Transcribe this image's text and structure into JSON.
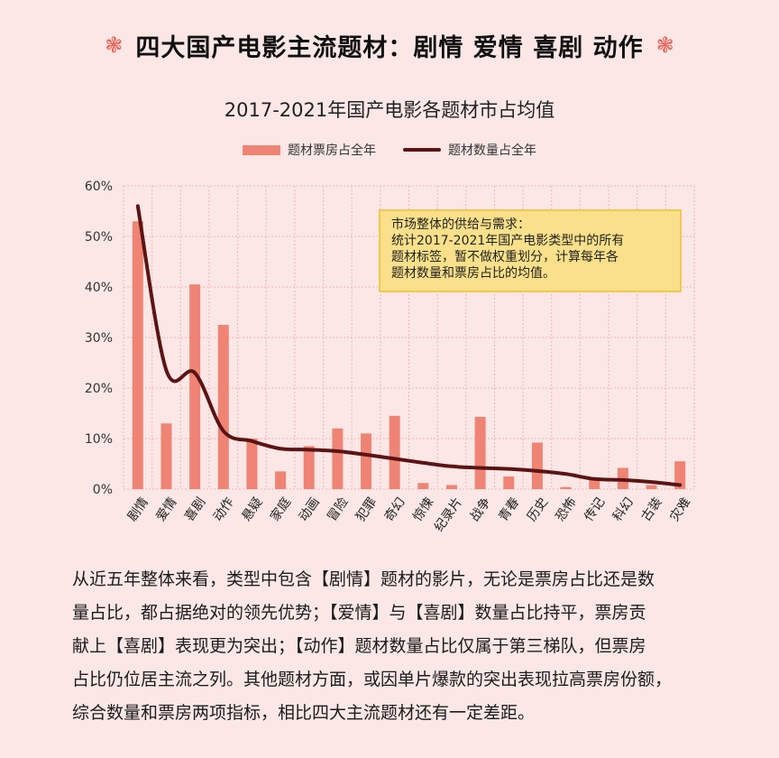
{
  "headline": {
    "deco_left": "❃",
    "text": "四大国产电影主流题材：剧情 爱情 喜剧 动作",
    "deco_right": "❃"
  },
  "colors": {
    "bar": "#ef8474",
    "line": "#5b1414",
    "grid": "#e9b8b2",
    "note_bg": "#fae08a"
  },
  "note": {
    "lines": [
      "市场整体的供给与需求：",
      "统计2017-2021年国产电影类型中的所有",
      "题材标签，暂不做权重划分，计算每年各",
      "题材数量和票房占比的均值。"
    ]
  },
  "paragraph": {
    "lines": [
      "从近五年整体来看，类型中包含【剧情】题材的影片，无论是票房占比还是数",
      "量占比，都占据绝对的领先优势；【爱情】与【喜剧】数量占比持平，票房贡",
      "献上【喜剧】表现更为突出；【动作】题材数量占比仅属于第三梯队，但票房",
      "占比仍位居主流之列。其他题材方面，或因单片爆款的突出表现拉高票房份额，",
      "综合数量和票房两项指标，相比四大主流题材还有一定差距。"
    ]
  },
  "chart_data": {
    "type": "bar",
    "title": "2017-2021年国产电影各题材市占均值",
    "categories": [
      "剧情",
      "爱情",
      "喜剧",
      "动作",
      "悬疑",
      "家庭",
      "动画",
      "冒险",
      "犯罪",
      "奇幻",
      "惊悚",
      "纪录片",
      "战争",
      "青春",
      "历史",
      "恐怖",
      "传记",
      "科幻",
      "古装",
      "灾难"
    ],
    "series": [
      {
        "name": "题材票房占全年",
        "type": "bar",
        "values": [
          53,
          13,
          40.5,
          32.5,
          10,
          3.5,
          8.5,
          12,
          11,
          14.5,
          1.2,
          0.8,
          14.3,
          2.5,
          9.2,
          0.4,
          1.8,
          4.2,
          0.8,
          5.5
        ]
      },
      {
        "name": "题材数量占全年",
        "type": "line",
        "values": [
          56,
          23.5,
          23,
          11.5,
          9.5,
          8,
          7.8,
          7.5,
          6.8,
          6,
          5.2,
          4.5,
          4.2,
          4,
          3.6,
          3,
          2,
          1.8,
          1.4,
          0.8
        ]
      }
    ],
    "ylim": [
      0,
      60
    ],
    "yticks": [
      "0%",
      "10%",
      "20%",
      "30%",
      "40%",
      "50%",
      "60%"
    ],
    "grid": true,
    "legend_position": "top-center"
  }
}
